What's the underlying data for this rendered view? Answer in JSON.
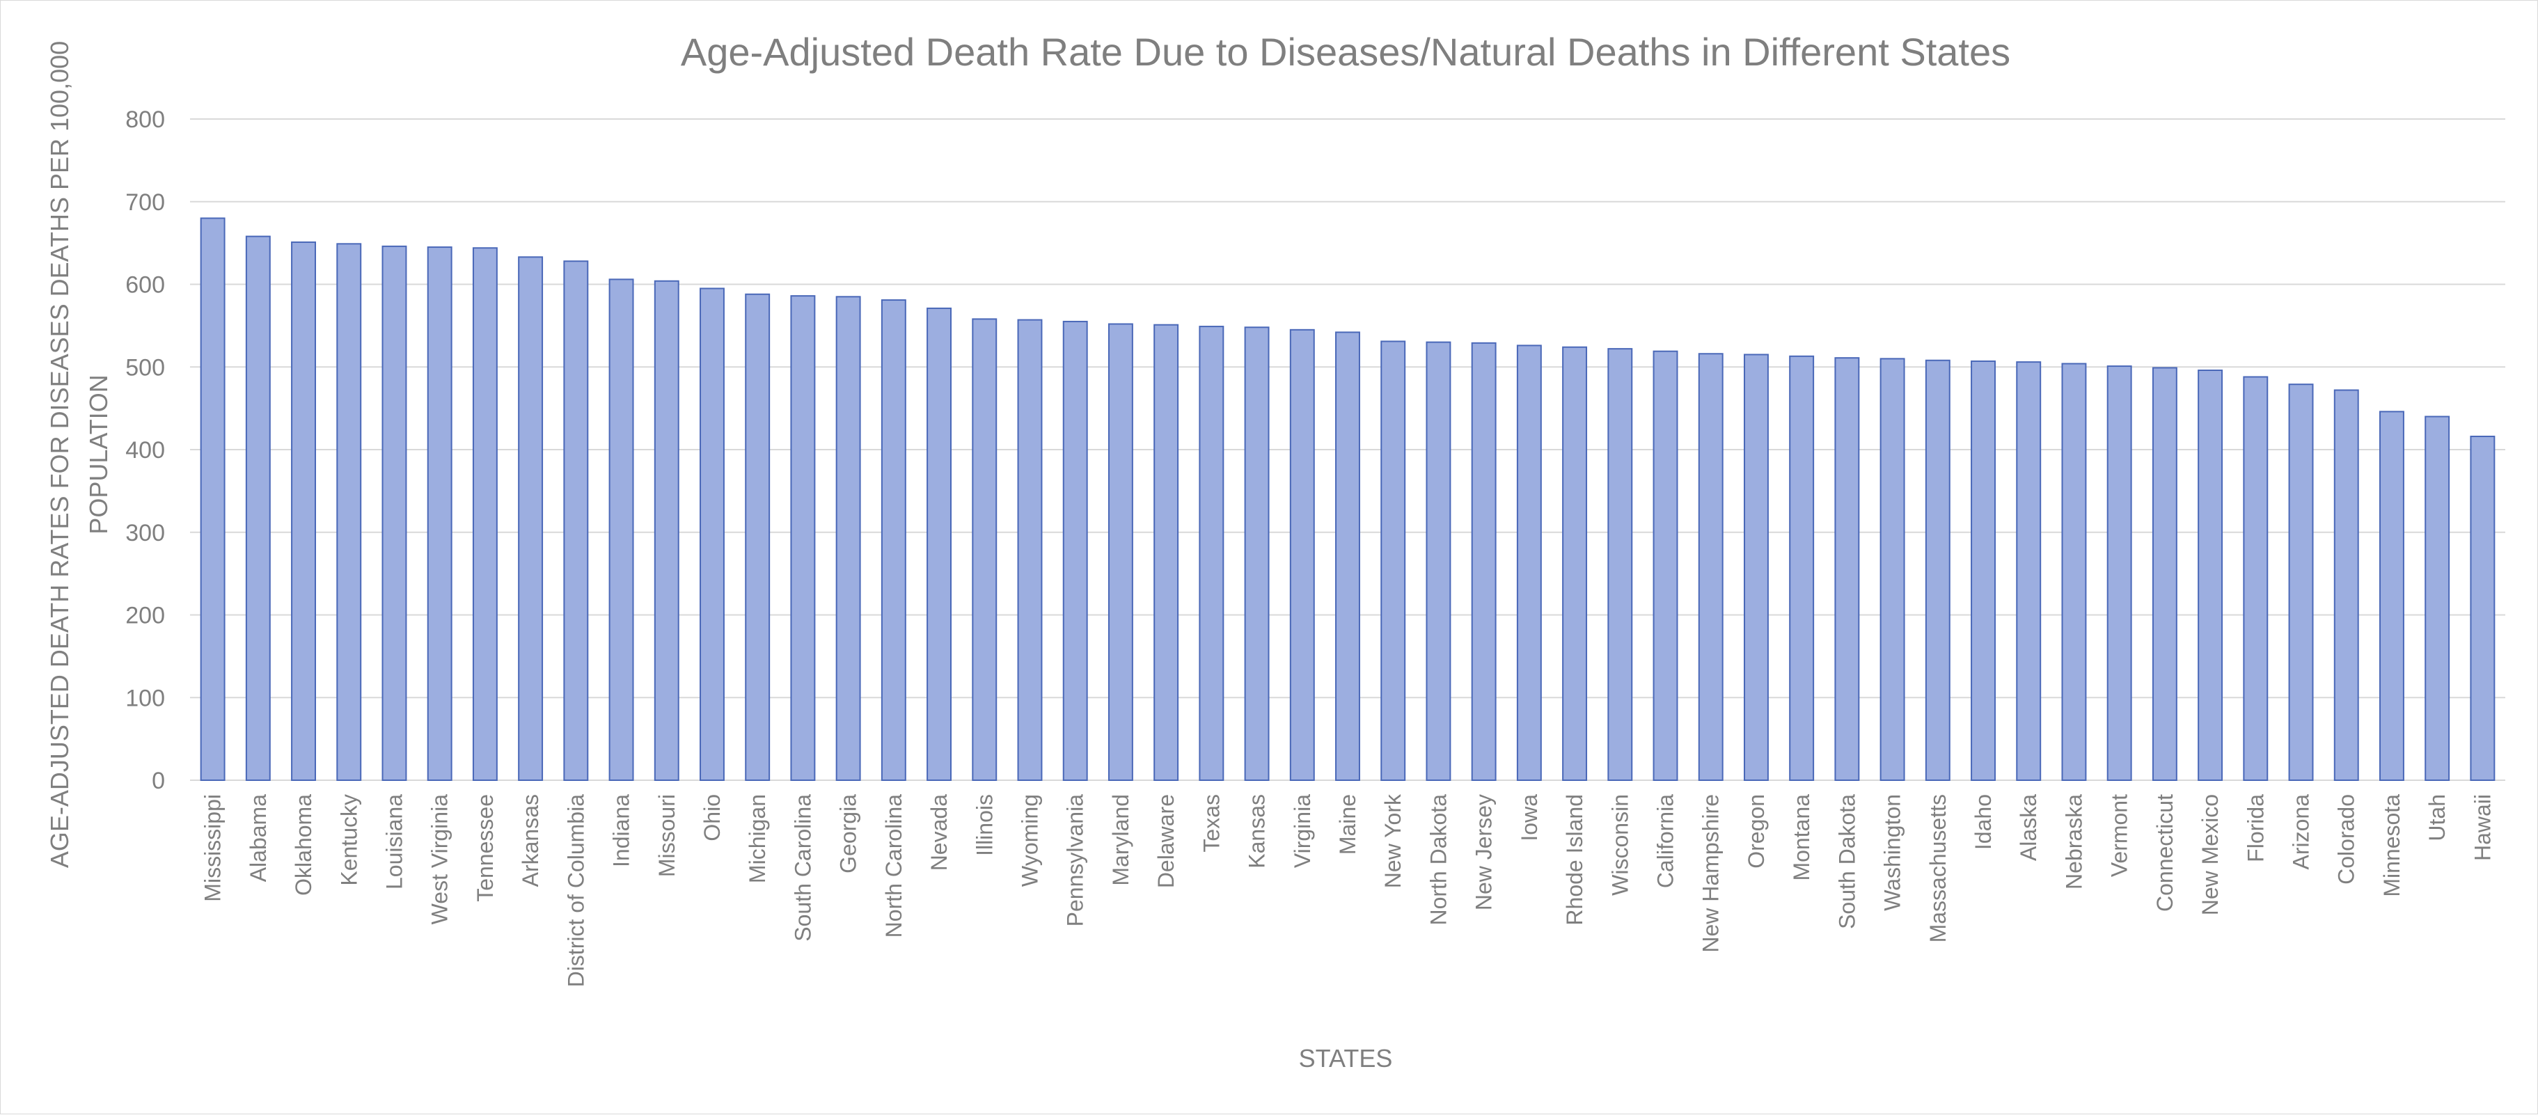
{
  "chart_data": {
    "type": "bar",
    "title": "Age-Adjusted Death Rate Due to Diseases/Natural Deaths in Different States",
    "xlabel": "STATES",
    "ylabel_lines": [
      "AGE-ADJUSTED DEATH RATES FOR DISEASES DEATHS PER 100,000",
      "POPULATION"
    ],
    "ylim": [
      0,
      800
    ],
    "yticks": [
      "0",
      "100",
      "200",
      "300",
      "400",
      "500",
      "600",
      "700",
      "800"
    ],
    "grid": true,
    "legend": "none",
    "categories": [
      "Mississippi",
      "Alabama",
      "Oklahoma",
      "Kentucky",
      "Louisiana",
      "West Virginia",
      "Tennessee",
      "Arkansas",
      "District of Columbia",
      "Indiana",
      "Missouri",
      "Ohio",
      "Michigan",
      "South Carolina",
      "Georgia",
      "North Carolina",
      "Nevada",
      "Illinois",
      "Wyoming",
      "Pennsylvania",
      "Maryland",
      "Delaware",
      "Texas",
      "Kansas",
      "Virginia",
      "Maine",
      "New York",
      "North Dakota",
      "New Jersey",
      "Iowa",
      "Rhode Island",
      "Wisconsin",
      "California",
      "New Hampshire",
      "Oregon",
      "Montana",
      "South Dakota",
      "Washington",
      "Massachusetts",
      "Idaho",
      "Alaska",
      "Nebraska",
      "Vermont",
      "Connecticut",
      "New Mexico",
      "Florida",
      "Arizona",
      "Colorado",
      "Minnesota",
      "Utah",
      "Hawaii"
    ],
    "values": [
      680,
      658,
      651,
      649,
      646,
      645,
      644,
      633,
      628,
      606,
      604,
      595,
      588,
      586,
      585,
      581,
      571,
      558,
      557,
      555,
      552,
      551,
      549,
      548,
      545,
      542,
      531,
      530,
      529,
      526,
      524,
      522,
      519,
      516,
      515,
      513,
      511,
      510,
      508,
      507,
      506,
      504,
      501,
      499,
      496,
      488,
      479,
      472,
      446,
      440,
      416
    ],
    "colors": {
      "bar_fill": "#9caee0",
      "bar_stroke": "#4a68b8",
      "grid": "#d9d9d9",
      "text": "#7f7f7f"
    }
  }
}
